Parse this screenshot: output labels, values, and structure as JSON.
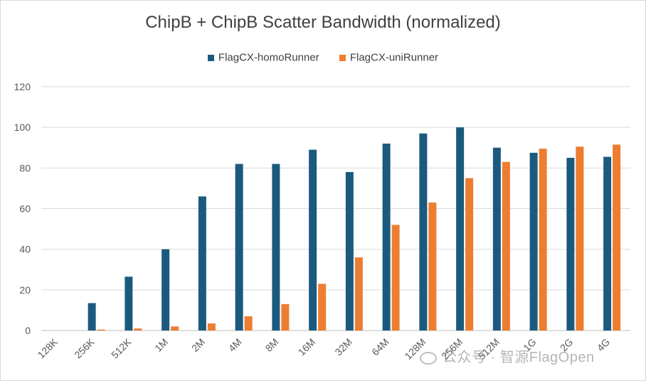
{
  "chart_data": {
    "type": "bar",
    "title": "ChipB + ChipB Scatter Bandwidth (normalized)",
    "xlabel": "",
    "ylabel": "",
    "ylim": [
      0,
      120
    ],
    "yticks": [
      0,
      20,
      40,
      60,
      80,
      100,
      120
    ],
    "grid": true,
    "legend_position": "top-center",
    "categories": [
      "128K",
      "256K",
      "512K",
      "1M",
      "2M",
      "4M",
      "8M",
      "16M",
      "32M",
      "64M",
      "128M",
      "256M",
      "512M",
      "1G",
      "2G",
      "4G"
    ],
    "series": [
      {
        "name": "FlagCX-homoRunner",
        "color": "#1b5a7e",
        "values": [
          0,
          13.5,
          26.5,
          40,
          66,
          82,
          82,
          89,
          78,
          92,
          97,
          100,
          90,
          87.5,
          85,
          85.5
        ]
      },
      {
        "name": "FlagCX-uniRunner",
        "color": "#ed7d31",
        "values": [
          0,
          0.5,
          1,
          2,
          3.5,
          7,
          13,
          23,
          36,
          52,
          63,
          75,
          83,
          89.5,
          90.5,
          91.5
        ]
      }
    ]
  },
  "watermark": {
    "text": "公众号 · 智源FlagOpen",
    "icon": "wechat-icon"
  }
}
